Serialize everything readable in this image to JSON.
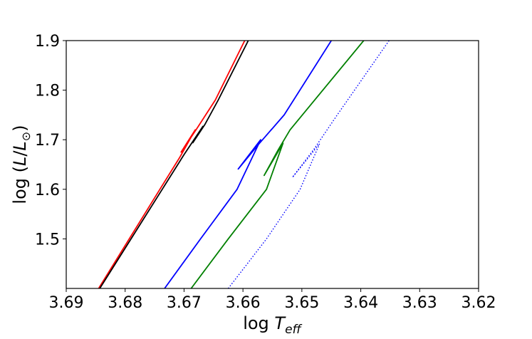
{
  "chart_data": {
    "type": "line",
    "title": "",
    "xlabel_main": "log ",
    "xlabel_T": "T",
    "xlabel_sub": "eff",
    "ylabel_prefix": "log (",
    "ylabel_L1": "L",
    "ylabel_slash": "/",
    "ylabel_L2": "L",
    "ylabel_sun": "⊙",
    "ylabel_suffix": ")",
    "xlim": [
      3.69,
      3.62
    ],
    "ylim": [
      1.4,
      1.9
    ],
    "x_inverted": true,
    "grid": false,
    "legend": false,
    "x_ticks": [
      "3.69",
      "3.68",
      "3.67",
      "3.66",
      "3.65",
      "3.64",
      "3.63",
      "3.62"
    ],
    "x_tick_values": [
      3.69,
      3.68,
      3.67,
      3.66,
      3.65,
      3.64,
      3.63,
      3.62
    ],
    "y_ticks": [
      "1.5",
      "1.6",
      "1.7",
      "1.8",
      "1.9"
    ],
    "y_tick_values": [
      1.5,
      1.6,
      1.7,
      1.8,
      1.9
    ],
    "series": [
      {
        "color": "#ff0000",
        "style": "solid",
        "points": [
          [
            3.6845,
            1.4
          ],
          [
            3.6793,
            1.5
          ],
          [
            3.6741,
            1.6
          ],
          [
            3.6707,
            1.665
          ],
          [
            3.6681,
            1.72
          ],
          [
            3.6705,
            1.675
          ],
          [
            3.6678,
            1.723
          ],
          [
            3.6647,
            1.78
          ],
          [
            3.6597,
            1.9
          ]
        ]
      },
      {
        "color": "#000000",
        "style": "solid",
        "points": [
          [
            3.6843,
            1.4
          ],
          [
            3.679,
            1.5
          ],
          [
            3.6737,
            1.6
          ],
          [
            3.67,
            1.67
          ],
          [
            3.6668,
            1.727
          ],
          [
            3.6685,
            1.694
          ],
          [
            3.6665,
            1.73
          ],
          [
            3.6642,
            1.78
          ],
          [
            3.6591,
            1.9
          ]
        ]
      },
      {
        "color": "#0000ff",
        "style": "solid",
        "points": [
          [
            3.6733,
            1.4
          ],
          [
            3.6672,
            1.5
          ],
          [
            3.661,
            1.6
          ],
          [
            3.657,
            1.7
          ],
          [
            3.6608,
            1.641
          ],
          [
            3.6574,
            1.69
          ],
          [
            3.653,
            1.75
          ],
          [
            3.645,
            1.9
          ]
        ]
      },
      {
        "color": "#008000",
        "style": "solid",
        "points": [
          [
            3.6688,
            1.4
          ],
          [
            3.6625,
            1.5
          ],
          [
            3.656,
            1.6
          ],
          [
            3.6532,
            1.693
          ],
          [
            3.6564,
            1.628
          ],
          [
            3.654,
            1.68
          ],
          [
            3.652,
            1.72
          ],
          [
            3.6395,
            1.9
          ]
        ]
      },
      {
        "color": "#0000ff",
        "style": "dotted",
        "points": [
          [
            3.6625,
            1.4
          ],
          [
            3.656,
            1.5
          ],
          [
            3.6503,
            1.6
          ],
          [
            3.647,
            1.692
          ],
          [
            3.6516,
            1.624
          ],
          [
            3.648,
            1.68
          ],
          [
            3.644,
            1.75
          ],
          [
            3.6352,
            1.9
          ]
        ]
      }
    ]
  }
}
